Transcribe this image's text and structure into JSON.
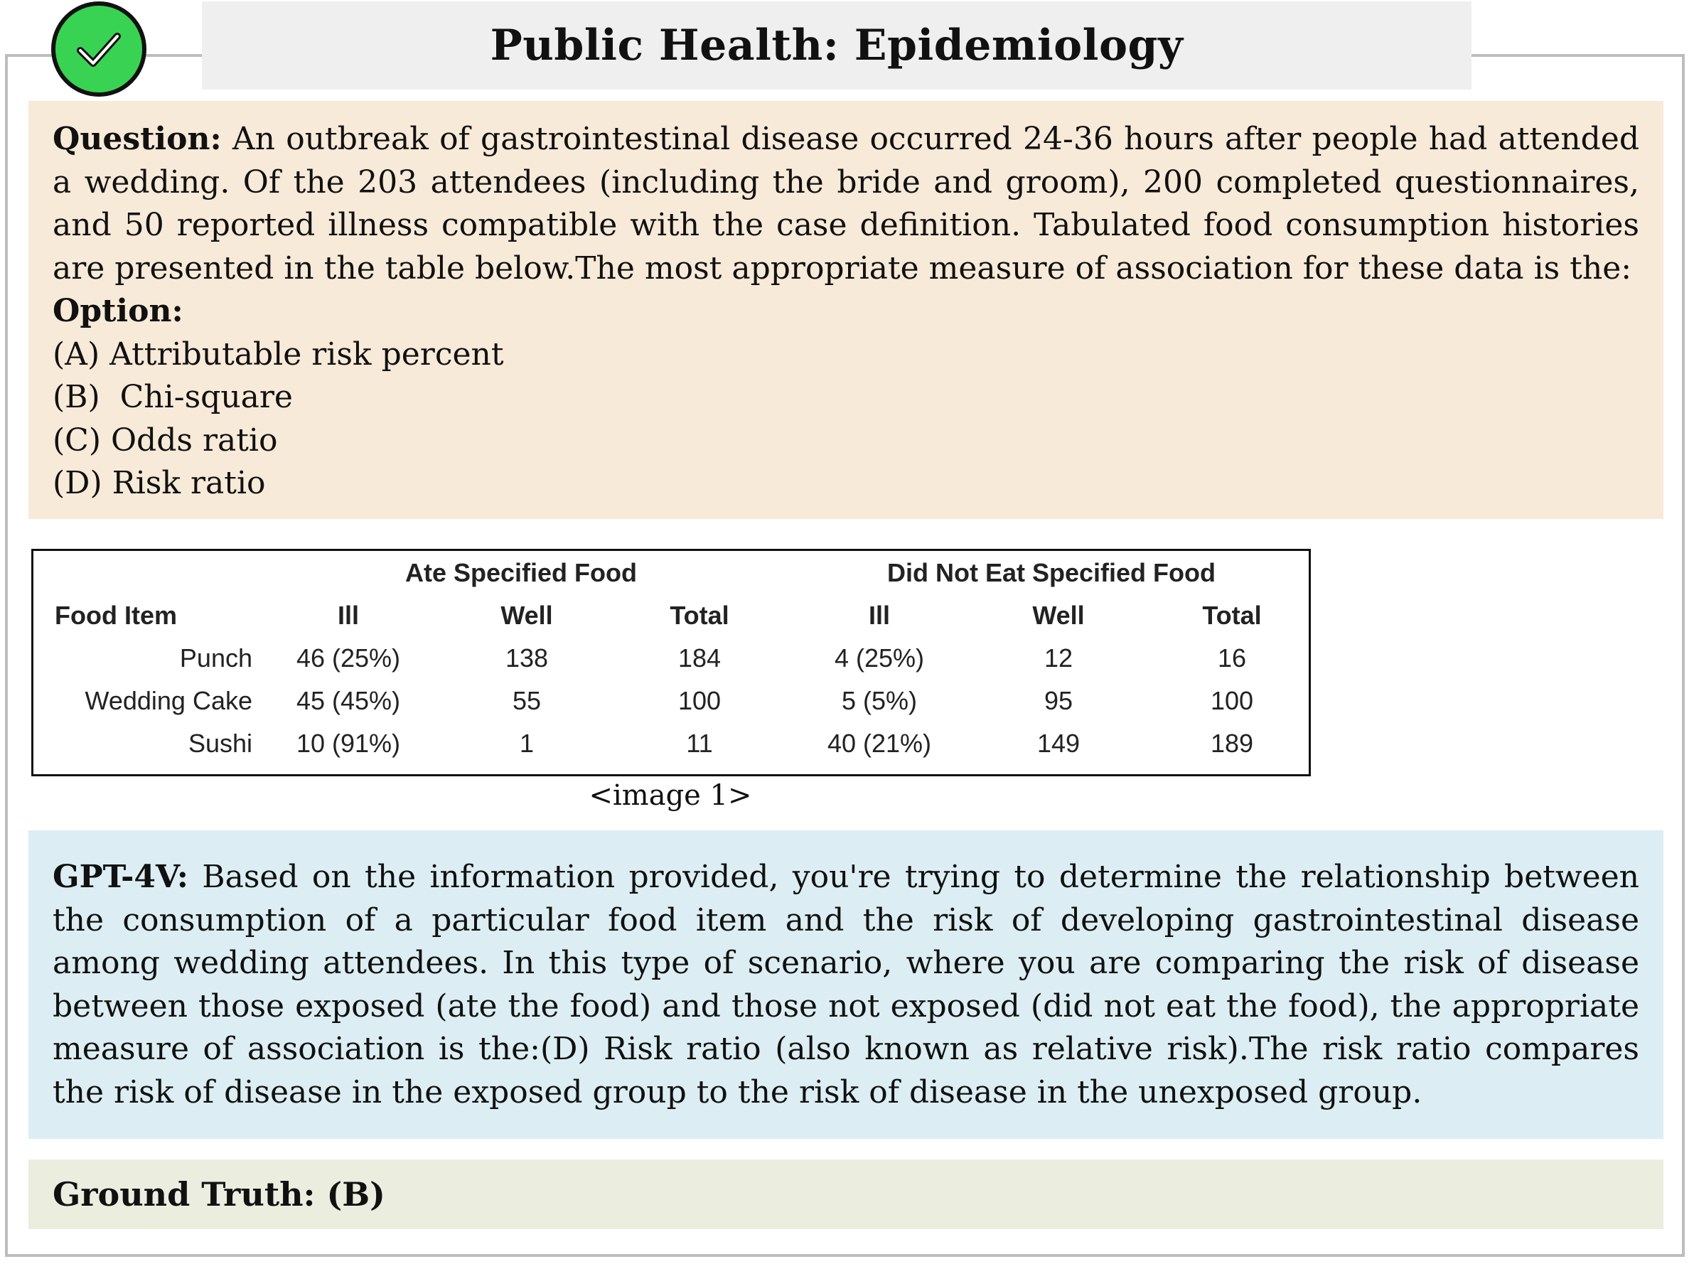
{
  "header": {
    "title": "Public Health: Epidemiology",
    "badge_icon": "check-circle-icon",
    "badge_color": "#39d353"
  },
  "question": {
    "label": "Question:",
    "text": "An outbreak of gastrointestinal disease occurred 24-36 hours after people had attended a wedding. Of the 203 attendees (including the bride and groom), 200 completed questionnaires, and 50 reported illness compatible with the case definition. Tabulated food consumption histories are presented in the table below.The most appropriate measure of association for these data is the:",
    "option_label": "Option:",
    "options": [
      "(A) Attributable risk percent",
      "(B)  Chi-square",
      "(C) Odds ratio",
      "(D) Risk ratio"
    ],
    "background": "#f8ead8"
  },
  "food_table": {
    "group_headers": [
      "Ate Specified Food",
      "Did Not Eat Specified Food"
    ],
    "columns": [
      "Food Item",
      "Ill",
      "Well",
      "Total",
      "Ill",
      "Well",
      "Total"
    ],
    "rows": [
      [
        "Punch",
        "46 (25%)",
        "138",
        "184",
        "4 (25%)",
        "12",
        "16"
      ],
      [
        "Wedding Cake",
        "45 (45%)",
        "55",
        "100",
        "5 (5%)",
        "95",
        "100"
      ],
      [
        "Sushi",
        "10 (91%)",
        "1",
        "11",
        "40 (21%)",
        "149",
        "189"
      ]
    ],
    "caption": "<image 1>"
  },
  "answer": {
    "label": "GPT-4V:",
    "text": "Based on the information provided, you're trying to determine the relationship between the consumption of a particular food item and the risk of developing gastrointestinal disease among wedding attendees. In this type of scenario, where you are comparing the risk of disease between those exposed (ate the food) and those not exposed (did not eat the food), the appropriate measure of association is the:(D) Risk ratio (also known as relative risk).The risk ratio compares the risk of disease in the exposed group to the risk of disease in the unexposed group.",
    "background": "#dceef3"
  },
  "ground_truth": {
    "text": "Ground Truth: (B)",
    "background": "#ebeedf"
  }
}
